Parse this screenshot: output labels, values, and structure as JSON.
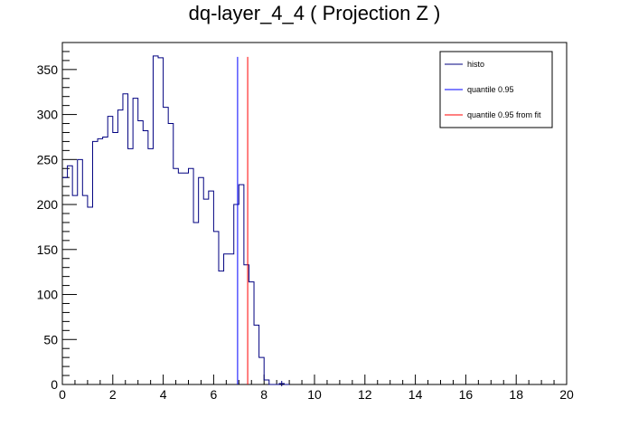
{
  "chart_data": {
    "type": "line",
    "title": "dq-layer_4_4 ( Projection Z )",
    "xlim": [
      0,
      20
    ],
    "ylim": [
      0,
      380
    ],
    "x_ticks": [
      "0",
      "2",
      "4",
      "6",
      "8",
      "10",
      "12",
      "14",
      "16",
      "18",
      "20"
    ],
    "y_ticks": [
      "0",
      "50",
      "100",
      "150",
      "200",
      "250",
      "300",
      "350"
    ],
    "x_tick_values": [
      0,
      2,
      4,
      6,
      8,
      10,
      12,
      14,
      16,
      18,
      20
    ],
    "y_tick_values": [
      0,
      50,
      100,
      150,
      200,
      250,
      300,
      350
    ],
    "grid": false,
    "legend_position": "top-right",
    "histogram": {
      "name": "histo",
      "color": "#000080",
      "bin_width": 0.2,
      "x_start": 0,
      "values": [
        230,
        243,
        210,
        250,
        210,
        197,
        270,
        273,
        275,
        298,
        280,
        305,
        323,
        262,
        318,
        293,
        282,
        262,
        365,
        363,
        308,
        290,
        240,
        235,
        235,
        240,
        180,
        230,
        206,
        215,
        170,
        126,
        145,
        145,
        200,
        222,
        133,
        114,
        66,
        30,
        5,
        0,
        0,
        1,
        0
      ]
    },
    "quantile_lines": [
      {
        "name": "quantile 0.95",
        "x": 6.95,
        "y_top": 364,
        "color": "#0000ff"
      },
      {
        "name": "quantile 0.95 from fit",
        "x": 7.35,
        "y_top": 364,
        "color": "#ff0000"
      }
    ],
    "legend": [
      {
        "label": "histo",
        "color": "#000080"
      },
      {
        "label": "quantile 0.95",
        "color": "#0000ff"
      },
      {
        "label": "quantile 0.95 from fit",
        "color": "#ff0000"
      }
    ]
  }
}
